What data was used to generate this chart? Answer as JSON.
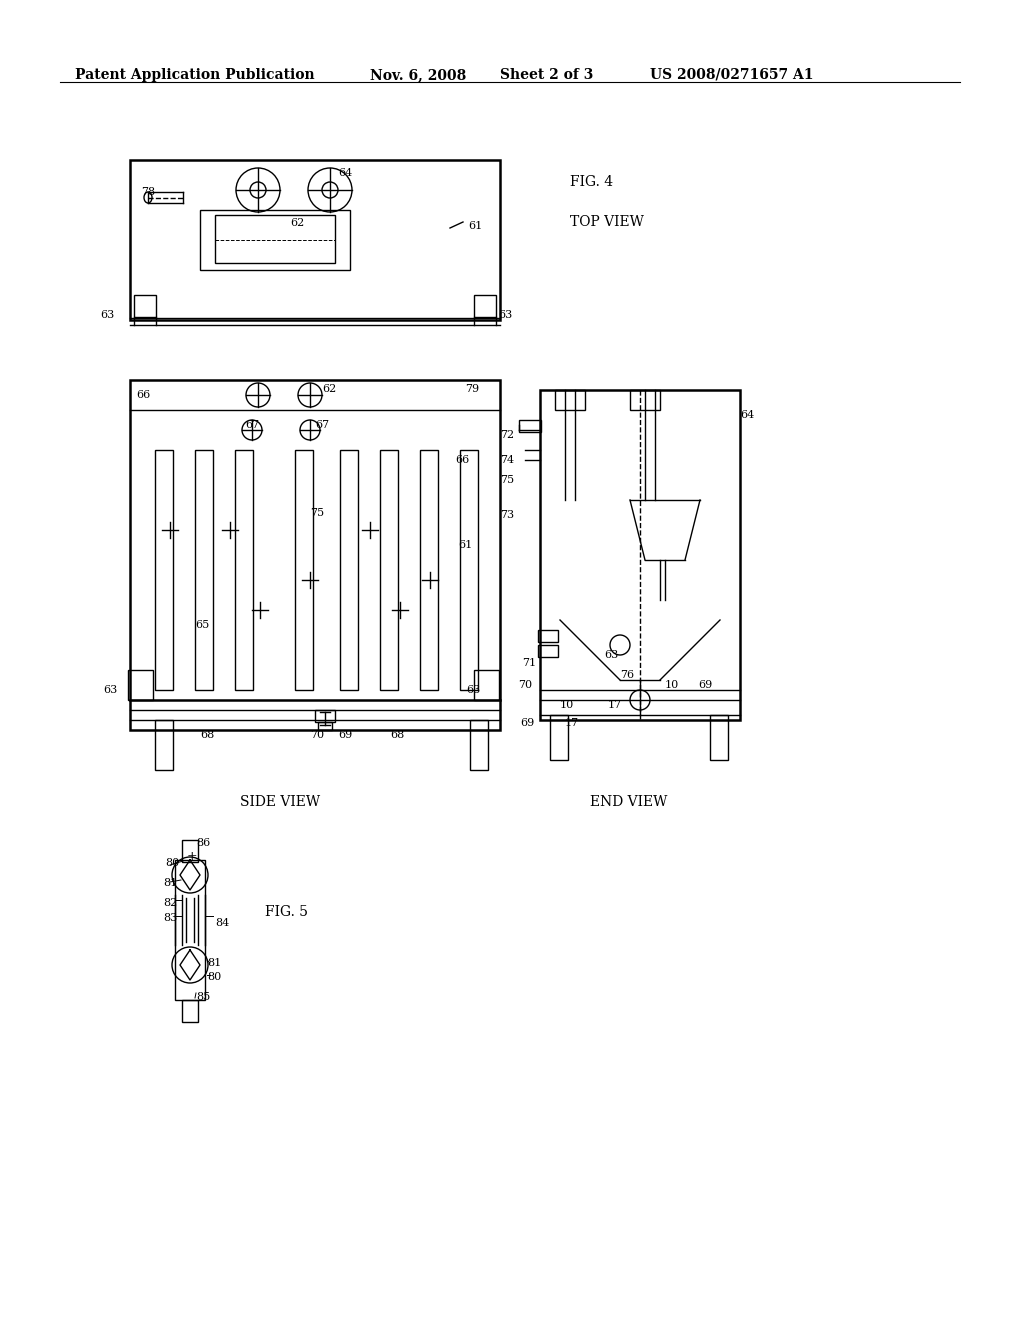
{
  "bg_color": "#ffffff",
  "line_color": "#000000",
  "header_text": "Patent Application Publication",
  "header_date": "Nov. 6, 2008",
  "header_sheet": "Sheet 2 of 3",
  "header_patent": "US 2008/0271657 A1",
  "fig4_label": "FIG. 4",
  "top_view_label": "TOP VIEW",
  "side_view_label": "SIDE VIEW",
  "end_view_label": "END VIEW",
  "fig5_label": "FIG. 5",
  "line_width": 1.0,
  "thick_line": 1.8
}
